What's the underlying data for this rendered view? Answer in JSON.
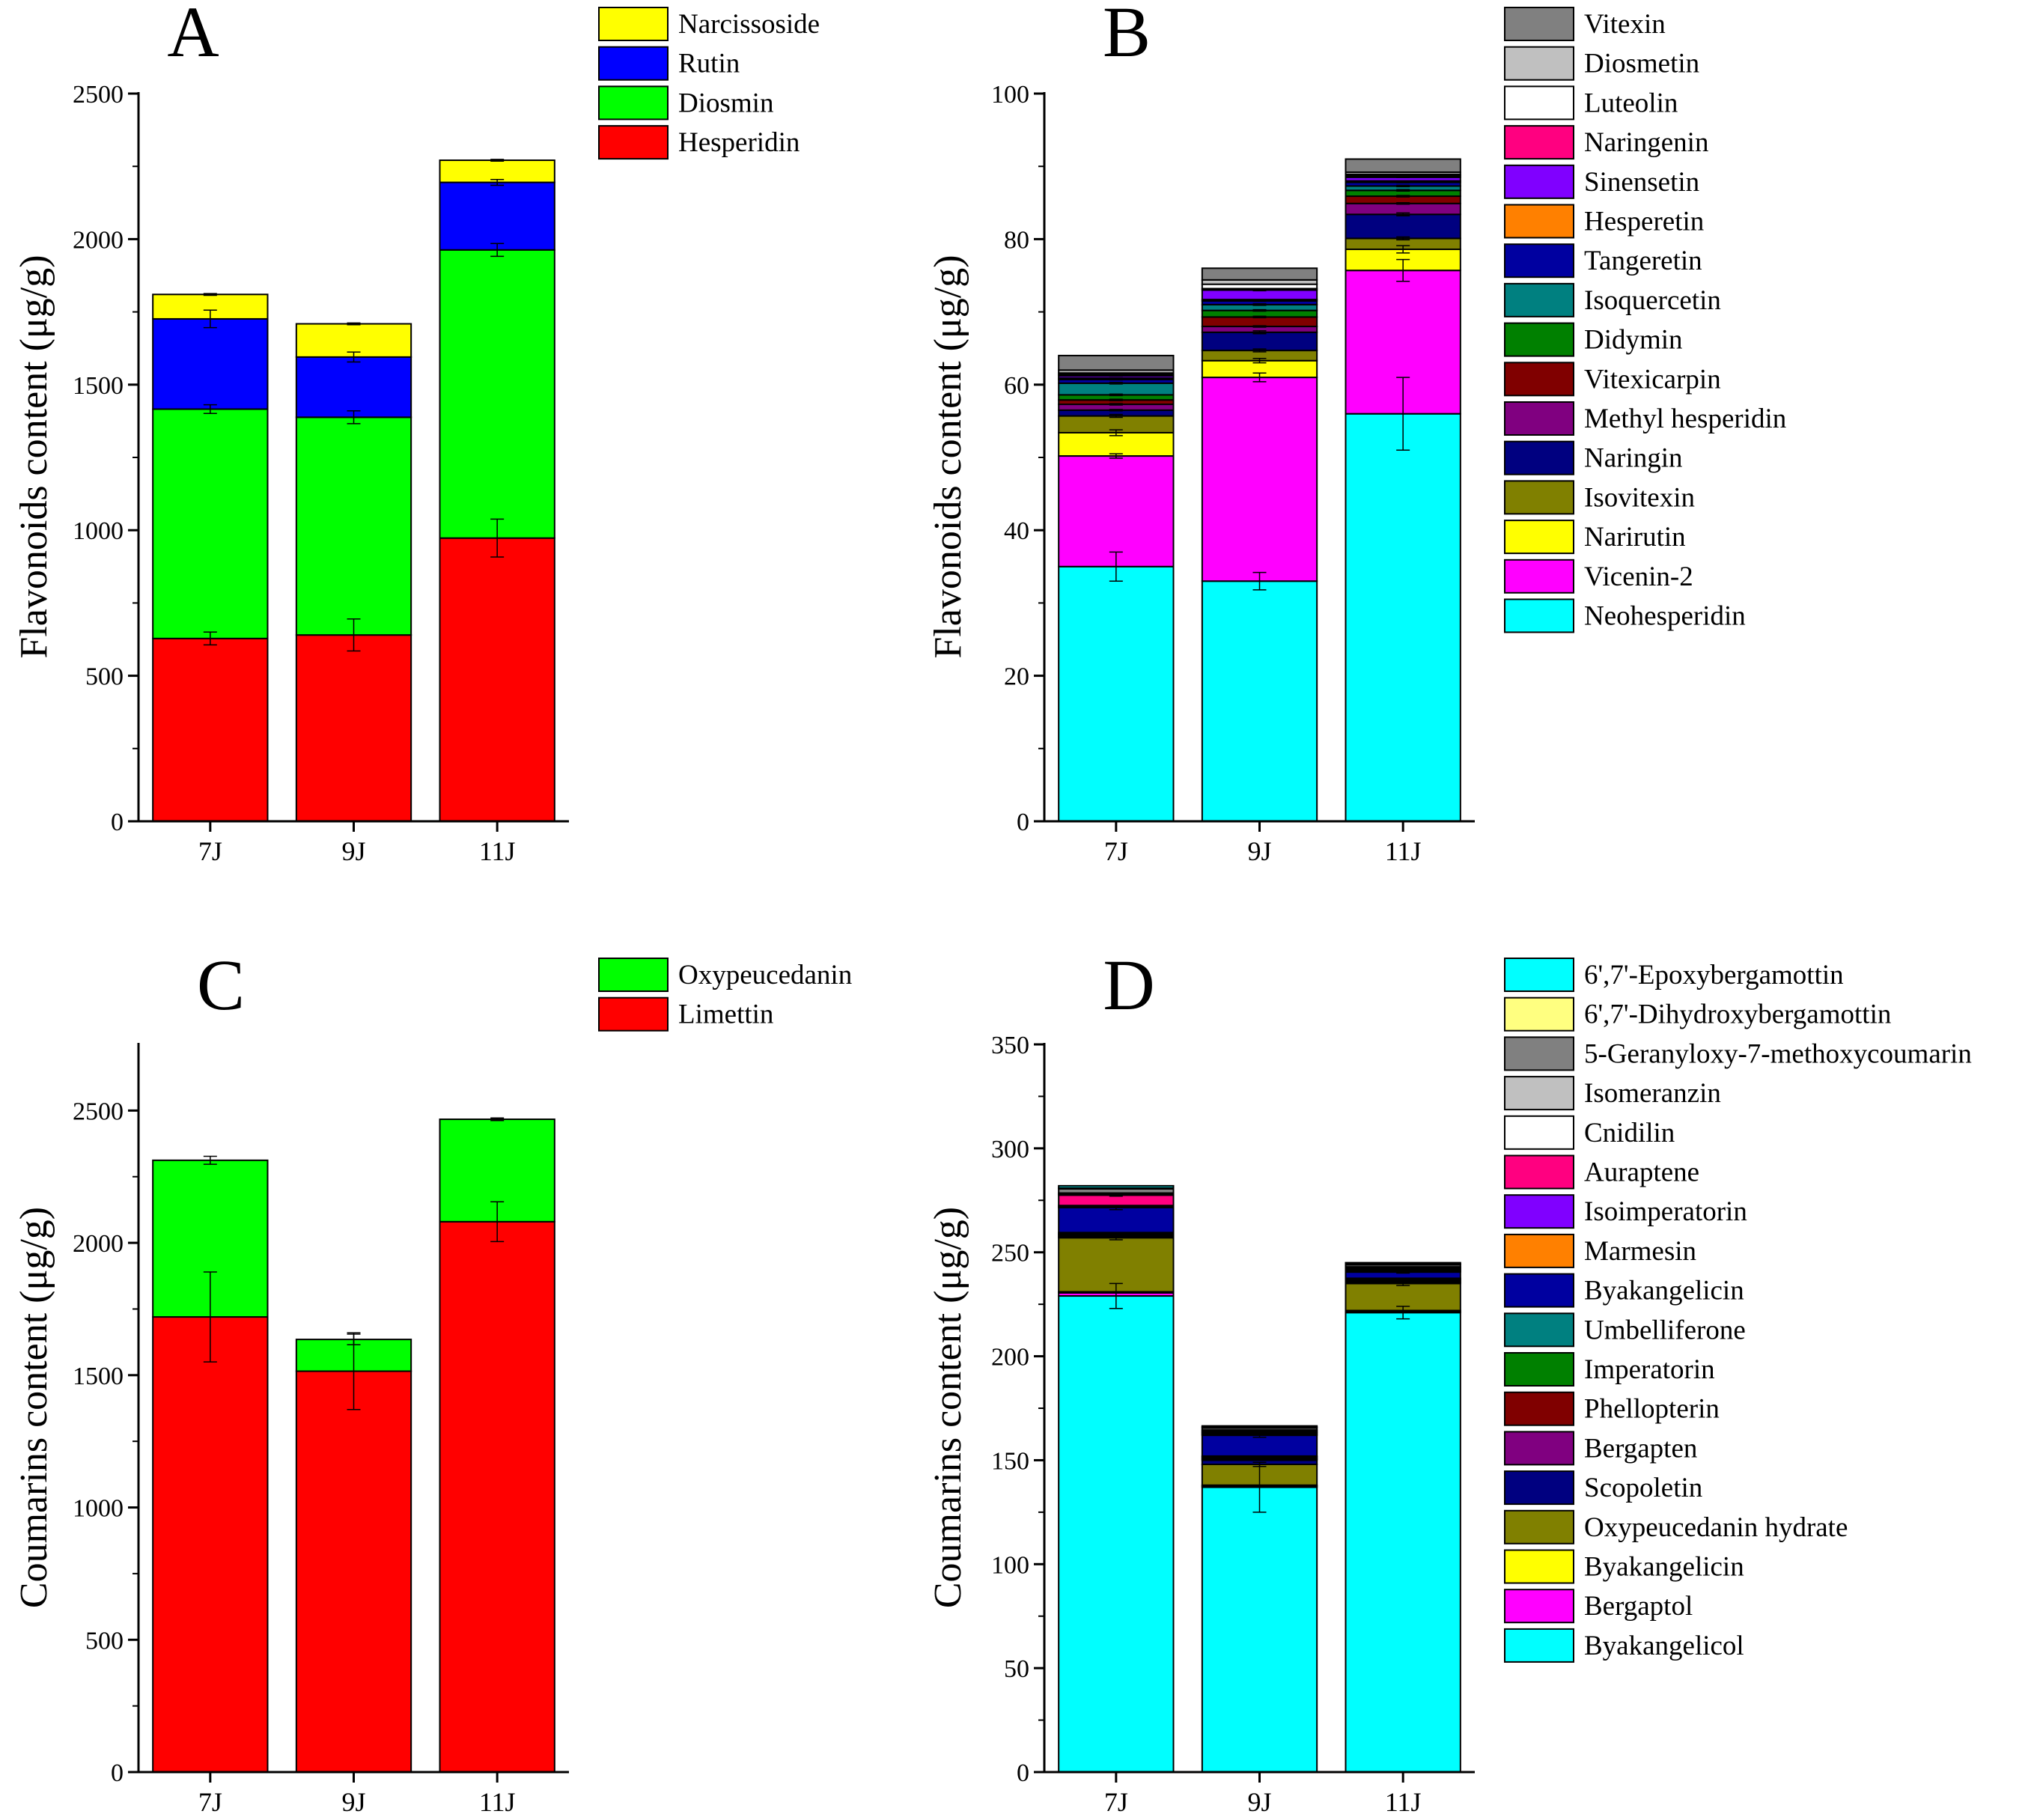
{
  "chart_data": [
    {
      "id": "A",
      "type": "bar",
      "stacked": true,
      "panel_label": "A",
      "ylabel": "Flavonoids content (μg/g)",
      "categories": [
        "7J",
        "9J",
        "11J"
      ],
      "ylim": [
        0,
        2500
      ],
      "yticks": [
        0,
        500,
        1000,
        1500,
        2000,
        2500
      ],
      "legend_order": "reverse",
      "series": [
        {
          "name": "Hesperidin",
          "color": "#ff0000",
          "values": [
            628,
            640,
            973
          ],
          "errors": [
            22,
            55,
            65
          ]
        },
        {
          "name": "Diosmin",
          "color": "#00ff00",
          "values": [
            788,
            748,
            990
          ],
          "errors": [
            15,
            22,
            22
          ]
        },
        {
          "name": "Rutin",
          "color": "#0000ff",
          "values": [
            310,
            207,
            232
          ],
          "errors": [
            30,
            17,
            10
          ]
        },
        {
          "name": "Narcissoside",
          "color": "#ffff00",
          "values": [
            84,
            114,
            76
          ],
          "errors": [
            3,
            3,
            3
          ]
        }
      ]
    },
    {
      "id": "B",
      "type": "bar",
      "stacked": true,
      "panel_label": "B",
      "ylabel": "Flavonoids content (μg/g)",
      "categories": [
        "7J",
        "9J",
        "11J"
      ],
      "ylim": [
        0,
        100
      ],
      "yticks": [
        0,
        20,
        40,
        60,
        80,
        100
      ],
      "legend_order": "reverse",
      "series": [
        {
          "name": "Neohesperidin",
          "color": "#00ffff",
          "values": [
            35.0,
            33.0,
            56.0
          ],
          "errors": [
            2,
            1.2,
            5
          ]
        },
        {
          "name": "Vicenin-2",
          "color": "#ff00ff",
          "values": [
            15.2,
            28.0,
            19.7
          ],
          "errors": [
            0.3,
            0.6,
            1.5
          ]
        },
        {
          "name": "Narirutin",
          "color": "#ffff00",
          "values": [
            3.2,
            2.3,
            2.9
          ],
          "errors": [
            0.4,
            0.3,
            0.5
          ]
        },
        {
          "name": "Isovitexin",
          "color": "#808000",
          "values": [
            2.3,
            1.4,
            1.5
          ],
          "errors": [
            0.2,
            0.2,
            0.2
          ]
        },
        {
          "name": "Naringin",
          "color": "#000080",
          "values": [
            0.8,
            2.5,
            3.3
          ],
          "errors": [
            0.1,
            0.2,
            0.2
          ]
        },
        {
          "name": "Methyl hesperidin",
          "color": "#800080",
          "values": [
            0.8,
            0.8,
            1.5
          ],
          "errors": [
            0.1,
            0.1,
            0.1
          ]
        },
        {
          "name": "Vitexicarpin",
          "color": "#800000",
          "values": [
            0.6,
            1.3,
            1.0
          ],
          "errors": [
            0.1,
            0.1,
            0.1
          ]
        },
        {
          "name": "Didymin",
          "color": "#008000",
          "values": [
            0.7,
            0.9,
            0.8
          ],
          "errors": [
            0.1,
            0.1,
            0.1
          ]
        },
        {
          "name": "Isoquercetin",
          "color": "#008080",
          "values": [
            1.6,
            0.8,
            0.6
          ],
          "errors": [
            0.1,
            0.1,
            0.1
          ]
        },
        {
          "name": "Tangeretin",
          "color": "#0000a0",
          "values": [
            0.5,
            0.5,
            0.5
          ],
          "errors": [
            0.05,
            0.05,
            0.05
          ]
        },
        {
          "name": "Hesperetin",
          "color": "#ff8000",
          "values": [
            0.2,
            0.2,
            0.2
          ],
          "errors": [
            0,
            0,
            0
          ]
        },
        {
          "name": "Sinensetin",
          "color": "#8000ff",
          "values": [
            0.3,
            1.3,
            0.5
          ],
          "errors": [
            0.05,
            0.1,
            0.05
          ]
        },
        {
          "name": "Naringenin",
          "color": "#ff0080",
          "values": [
            0.2,
            0.2,
            0.2
          ],
          "errors": [
            0,
            0,
            0
          ]
        },
        {
          "name": "Luteolin",
          "color": "#ffffff",
          "values": [
            0.2,
            0.6,
            0.2
          ],
          "errors": [
            0,
            0,
            0
          ]
        },
        {
          "name": "Diosmetin",
          "color": "#c0c0c0",
          "values": [
            0.4,
            0.6,
            0.3
          ],
          "errors": [
            0,
            0,
            0
          ]
        },
        {
          "name": "Vitexin",
          "color": "#808080",
          "values": [
            2.0,
            1.6,
            1.8
          ],
          "errors": [
            0,
            0,
            0
          ]
        }
      ]
    },
    {
      "id": "C",
      "type": "bar",
      "stacked": true,
      "panel_label": "C",
      "ylabel": "Coumarins content (μg/g)",
      "categories": [
        "7J",
        "9J",
        "11J"
      ],
      "ylim": [
        0,
        2750
      ],
      "yticks": [
        0,
        500,
        1000,
        1500,
        2000,
        2500
      ],
      "legend_order": "reverse",
      "series": [
        {
          "name": "Limettin",
          "color": "#ff0000",
          "values": [
            1720,
            1515,
            2080
          ],
          "errors": [
            170,
            145,
            75
          ]
        },
        {
          "name": "Oxypeucedanin",
          "color": "#00ff00",
          "values": [
            592,
            120,
            387
          ],
          "errors": [
            15,
            20,
            5
          ]
        }
      ]
    },
    {
      "id": "D",
      "type": "bar",
      "stacked": true,
      "panel_label": "D",
      "ylabel": "Coumarins content (μg/g)",
      "categories": [
        "7J",
        "9J",
        "11J"
      ],
      "ylim": [
        0,
        350
      ],
      "yticks": [
        0,
        50,
        100,
        150,
        200,
        250,
        300,
        350
      ],
      "legend_order": "reverse",
      "series": [
        {
          "name": "Byakangelicol",
          "color": "#00ffff",
          "values": [
            229,
            137,
            221
          ],
          "errors": [
            6,
            12,
            3
          ]
        },
        {
          "name": "Bergaptol",
          "color": "#ff00ff",
          "values": [
            1.5,
            0.5,
            0.5
          ],
          "errors": [
            0,
            0,
            0
          ]
        },
        {
          "name": "Byakangelicin",
          "color": "#ffff00",
          "values": [
            0.5,
            0.5,
            0.5
          ],
          "errors": [
            0,
            0,
            0
          ]
        },
        {
          "name": "Oxypeucedanin hydrate",
          "color": "#808000",
          "values": [
            26,
            10,
            13
          ],
          "errors": [
            1,
            1,
            1
          ]
        },
        {
          "name": "Scopoletin",
          "color": "#000080",
          "values": [
            0.5,
            2,
            0.5
          ],
          "errors": [
            0,
            0,
            0
          ]
        },
        {
          "name": "Bergapten",
          "color": "#800080",
          "values": [
            0.5,
            0.5,
            0.5
          ],
          "errors": [
            0,
            0,
            0
          ]
        },
        {
          "name": "Phellopterin",
          "color": "#800000",
          "values": [
            0.5,
            0.5,
            0.5
          ],
          "errors": [
            0,
            0,
            0
          ]
        },
        {
          "name": "Imperatorin",
          "color": "#008000",
          "values": [
            0.5,
            0.5,
            0.5
          ],
          "errors": [
            0,
            0,
            0
          ]
        },
        {
          "name": "Umbelliferone",
          "color": "#008080",
          "values": [
            0.5,
            0.5,
            0.5
          ],
          "errors": [
            0,
            0,
            0
          ]
        },
        {
          "name": "Byakangelicin",
          "color": "#0000a0",
          "values": [
            12,
            10,
            3
          ],
          "errors": [
            1,
            1,
            0.5
          ]
        },
        {
          "name": "Marmesin",
          "color": "#ff8000",
          "values": [
            0.5,
            0.5,
            0.5
          ],
          "errors": [
            0,
            0,
            0
          ]
        },
        {
          "name": "Isoimperatorin",
          "color": "#8000ff",
          "values": [
            0.5,
            0.5,
            0.5
          ],
          "errors": [
            0,
            0,
            0
          ]
        },
        {
          "name": "Auraptene",
          "color": "#ff0080",
          "values": [
            5,
            0.5,
            0.5
          ],
          "errors": [
            0.5,
            0,
            0
          ]
        },
        {
          "name": "Cnidilin",
          "color": "#ffffff",
          "values": [
            0.5,
            0.5,
            0.5
          ],
          "errors": [
            0,
            0,
            0
          ]
        },
        {
          "name": "Isomeranzin",
          "color": "#c0c0c0",
          "values": [
            0.5,
            0.5,
            0.5
          ],
          "errors": [
            0,
            0,
            0
          ]
        },
        {
          "name": "5-Geranyloxy-7-methoxycoumarin",
          "color": "#808080",
          "values": [
            2,
            1,
            1
          ],
          "errors": [
            0,
            0,
            0
          ]
        },
        {
          "name": "6',7'-Dihydroxybergamottin",
          "color": "#ffff80",
          "values": [
            0.5,
            0.5,
            0.5
          ],
          "errors": [
            0,
            0,
            0
          ]
        },
        {
          "name": "6',7'-Epoxybergamottin",
          "color": "#00ffff",
          "values": [
            1,
            0.5,
            0.5
          ],
          "errors": [
            0,
            0,
            0
          ]
        }
      ]
    }
  ]
}
